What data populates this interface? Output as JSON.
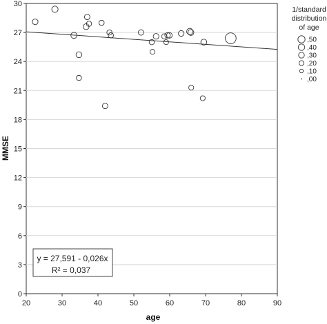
{
  "chart_data": {
    "type": "scatter",
    "xlabel": "age",
    "ylabel": "MMSE",
    "xlim": [
      20,
      90
    ],
    "ylim": [
      0,
      30
    ],
    "xticks": [
      "20",
      "30",
      "40",
      "50",
      "60",
      "70",
      "80",
      "90"
    ],
    "yticks": [
      "0",
      "3",
      "6",
      "9",
      "12",
      "15",
      "18",
      "21",
      "24",
      "27",
      "30"
    ],
    "grid": "horizontal",
    "points": [
      {
        "x": 22.5,
        "y": 28.1,
        "w": 0.1
      },
      {
        "x": 28.0,
        "y": 29.4,
        "w": 0.13
      },
      {
        "x": 33.3,
        "y": 26.7,
        "w": 0.12
      },
      {
        "x": 34.7,
        "y": 24.7,
        "w": 0.11
      },
      {
        "x": 34.7,
        "y": 22.3,
        "w": 0.08
      },
      {
        "x": 36.7,
        "y": 27.6,
        "w": 0.11
      },
      {
        "x": 37.0,
        "y": 28.6,
        "w": 0.09
      },
      {
        "x": 37.5,
        "y": 27.9,
        "w": 0.08
      },
      {
        "x": 41.0,
        "y": 28.0,
        "w": 0.08
      },
      {
        "x": 42.0,
        "y": 19.4,
        "w": 0.09
      },
      {
        "x": 43.2,
        "y": 27.0,
        "w": 0.08
      },
      {
        "x": 43.6,
        "y": 26.7,
        "w": 0.08
      },
      {
        "x": 52.0,
        "y": 27.0,
        "w": 0.09
      },
      {
        "x": 55.0,
        "y": 26.0,
        "w": 0.08
      },
      {
        "x": 55.2,
        "y": 25.0,
        "w": 0.07
      },
      {
        "x": 56.2,
        "y": 26.6,
        "w": 0.1
      },
      {
        "x": 58.5,
        "y": 26.6,
        "w": 0.08
      },
      {
        "x": 59.0,
        "y": 26.0,
        "w": 0.07
      },
      {
        "x": 59.4,
        "y": 26.7,
        "w": 0.09
      },
      {
        "x": 59.9,
        "y": 26.7,
        "w": 0.1
      },
      {
        "x": 63.2,
        "y": 26.9,
        "w": 0.1
      },
      {
        "x": 65.6,
        "y": 27.1,
        "w": 0.13
      },
      {
        "x": 65.9,
        "y": 27.0,
        "w": 0.11
      },
      {
        "x": 66.0,
        "y": 21.3,
        "w": 0.07
      },
      {
        "x": 69.2,
        "y": 20.2,
        "w": 0.07
      },
      {
        "x": 69.5,
        "y": 26.0,
        "w": 0.11
      },
      {
        "x": 77.0,
        "y": 26.4,
        "w": 0.48
      }
    ],
    "fit_line": {
      "intercept": 27.591,
      "slope": -0.026,
      "x_range": [
        20,
        90
      ]
    },
    "annotation": {
      "line1": "y = 27,591 - 0,026x",
      "line2": "R² = 0,037"
    },
    "legend": {
      "title_lines": [
        "1/standard",
        "distribution",
        "of age"
      ],
      "placement": "right",
      "items": [
        {
          "label": ",50",
          "w": 0.5
        },
        {
          "label": ",40",
          "w": 0.4
        },
        {
          "label": ",30",
          "w": 0.3
        },
        {
          "label": ",20",
          "w": 0.2
        },
        {
          "label": ",10",
          "w": 0.1
        },
        {
          "label": ",00",
          "w": 0.0
        }
      ]
    }
  }
}
